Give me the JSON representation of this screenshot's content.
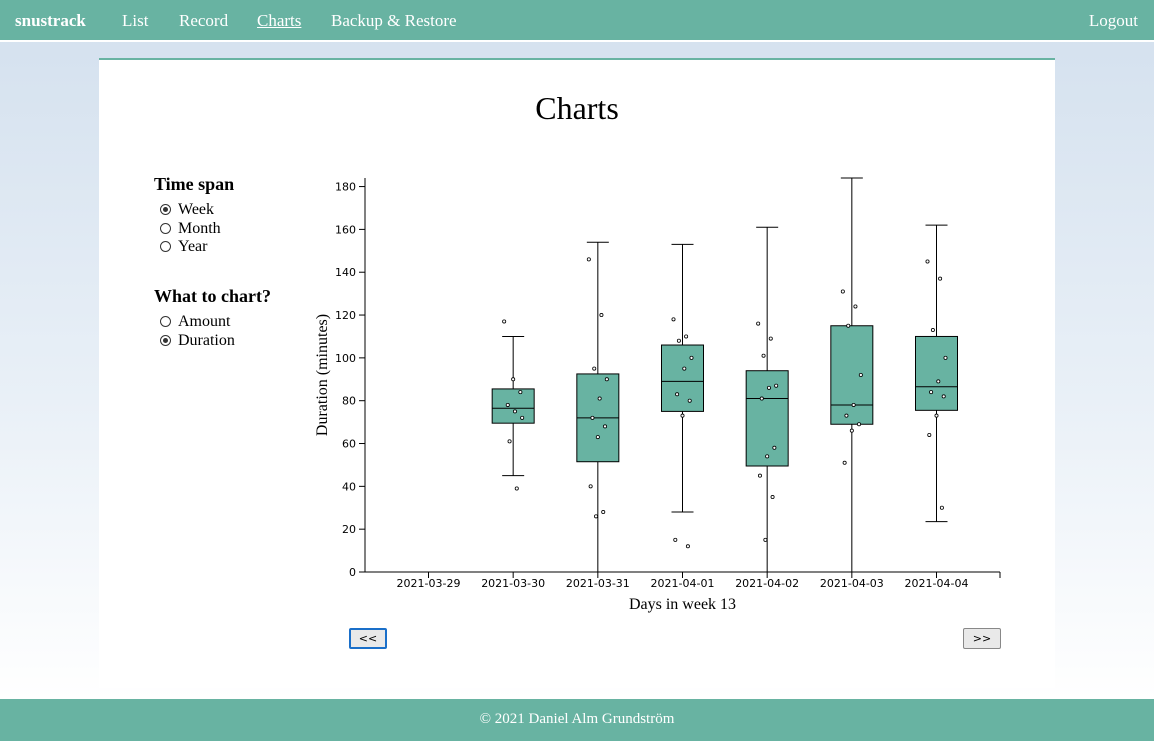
{
  "nav": {
    "brand": "snustrack",
    "links": [
      "List",
      "Record",
      "Charts",
      "Backup & Restore"
    ],
    "active": "Charts",
    "logout": "Logout"
  },
  "page": {
    "title": "Charts"
  },
  "time_span": {
    "title": "Time span",
    "options": [
      "Week",
      "Month",
      "Year"
    ],
    "selected": "Week"
  },
  "what_to_chart": {
    "title": "What to chart?",
    "options": [
      "Amount",
      "Duration"
    ],
    "selected": "Duration"
  },
  "chart_data": {
    "type": "box",
    "xlabel": "Days in week 13",
    "ylabel": "Duration (minutes)",
    "ylim": [
      0,
      184
    ],
    "yticks": [
      0,
      20,
      40,
      60,
      80,
      100,
      120,
      140,
      160,
      180
    ],
    "categories": [
      "2021-03-29",
      "2021-03-30",
      "2021-03-31",
      "2021-04-01",
      "2021-04-02",
      "2021-04-03",
      "2021-04-04"
    ],
    "boxes": [
      null,
      {
        "min": 45,
        "q1": 69.5,
        "median": 76.5,
        "q3": 85.5,
        "max": 110
      },
      {
        "min": 0,
        "q1": 51.5,
        "median": 72,
        "q3": 92.5,
        "max": 154
      },
      {
        "min": 28,
        "q1": 75,
        "median": 89,
        "q3": 106,
        "max": 153
      },
      {
        "min": 0,
        "q1": 49.5,
        "median": 81,
        "q3": 94,
        "max": 161
      },
      {
        "min": 0,
        "q1": 69,
        "median": 78,
        "q3": 115,
        "max": 184
      },
      {
        "min": 23.5,
        "q1": 75.5,
        "median": 86.5,
        "q3": 110,
        "max": 162
      }
    ],
    "points": [
      [],
      [
        117,
        39,
        61,
        72,
        75,
        78,
        84,
        90
      ],
      [
        146,
        120,
        95,
        90,
        81,
        72,
        68,
        63,
        40,
        28,
        26
      ],
      [
        118,
        110,
        108,
        100,
        95,
        83,
        80,
        73,
        15,
        12
      ],
      [
        116,
        109,
        101,
        87,
        86,
        81,
        58,
        54,
        45,
        35,
        15
      ],
      [
        131,
        124,
        115,
        92,
        78,
        73,
        69,
        66,
        51
      ],
      [
        145,
        137,
        113,
        100,
        89,
        84,
        82,
        73,
        64,
        30
      ]
    ],
    "colors": {
      "box_fill": "#68b3a2",
      "stroke": "#000000"
    }
  },
  "buttons": {
    "prev": "<<",
    "next": ">>"
  },
  "footer": {
    "text": "© 2021 Daniel Alm Grundström"
  }
}
